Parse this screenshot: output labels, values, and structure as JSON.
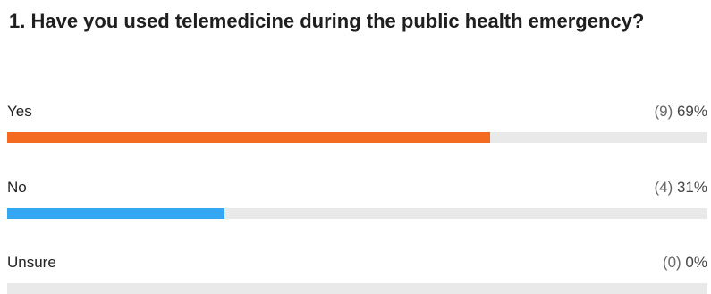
{
  "question": {
    "title": "1. Have you used telemedicine during the public health emergency?"
  },
  "chart_data": {
    "type": "bar",
    "orientation": "horizontal",
    "title": "1. Have you used telemedicine during the public health emergency?",
    "categories": [
      "Yes",
      "No",
      "Unsure"
    ],
    "counts": [
      9,
      4,
      0
    ],
    "percent_labels": [
      "69%",
      "31%",
      "0%"
    ],
    "count_labels": [
      "(9)",
      "(4)",
      "(0)"
    ],
    "values": [
      69,
      31,
      0
    ],
    "colors": [
      "#f26b21",
      "#35a7f2",
      "#7a7a7a"
    ],
    "track_color": "#e9e9e9",
    "xlim": [
      0,
      100
    ],
    "grid": false,
    "legend": "none"
  }
}
